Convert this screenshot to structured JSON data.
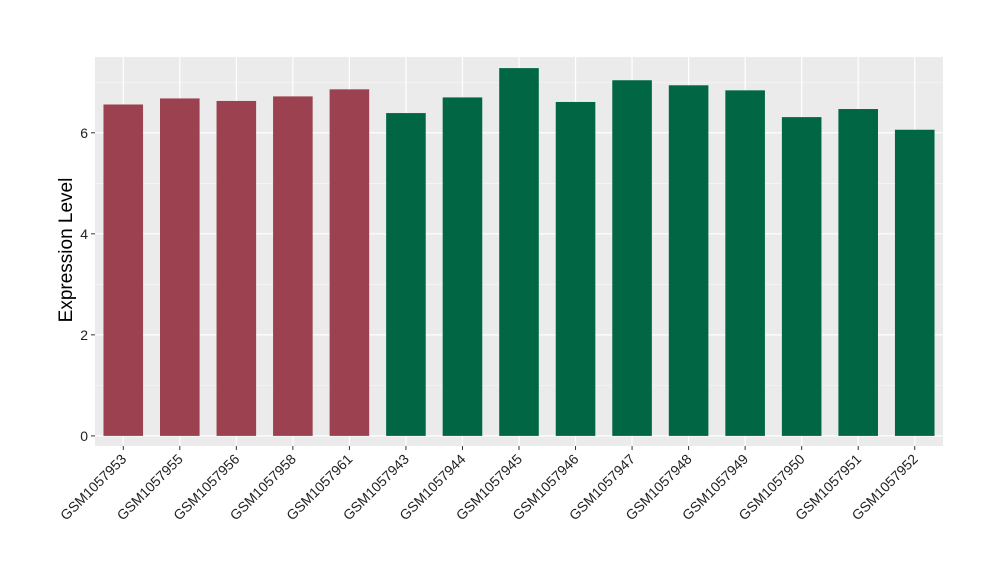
{
  "chart_data": {
    "type": "bar",
    "title": "",
    "xlabel": "",
    "ylabel": "Expression Level",
    "ylim": [
      -0.2,
      7.5
    ],
    "yticks": [
      0,
      2,
      4,
      6
    ],
    "grid": true,
    "background": "#ebebeb",
    "grid_major_color": "#ffffff",
    "groups": [
      {
        "color": "#9b4150",
        "categories": [
          "GSM1057953",
          "GSM1057955",
          "GSM1057956",
          "GSM1057958",
          "GSM1057961"
        ]
      },
      {
        "color": "#006644",
        "categories": [
          "GSM1057943",
          "GSM1057944",
          "GSM1057945",
          "GSM1057946",
          "GSM1057947",
          "GSM1057948",
          "GSM1057949",
          "GSM1057950",
          "GSM1057951",
          "GSM1057952"
        ]
      }
    ],
    "categories": [
      "GSM1057953",
      "GSM1057955",
      "GSM1057956",
      "GSM1057958",
      "GSM1057961",
      "GSM1057943",
      "GSM1057944",
      "GSM1057945",
      "GSM1057946",
      "GSM1057947",
      "GSM1057948",
      "GSM1057949",
      "GSM1057950",
      "GSM1057951",
      "GSM1057952"
    ],
    "values": [
      6.56,
      6.68,
      6.63,
      6.72,
      6.86,
      6.39,
      6.7,
      7.28,
      6.61,
      7.04,
      6.94,
      6.84,
      6.31,
      6.47,
      6.06
    ],
    "colors": [
      "#9b4150",
      "#9b4150",
      "#9b4150",
      "#9b4150",
      "#9b4150",
      "#006644",
      "#006644",
      "#006644",
      "#006644",
      "#006644",
      "#006644",
      "#006644",
      "#006644",
      "#006644",
      "#006644"
    ]
  }
}
